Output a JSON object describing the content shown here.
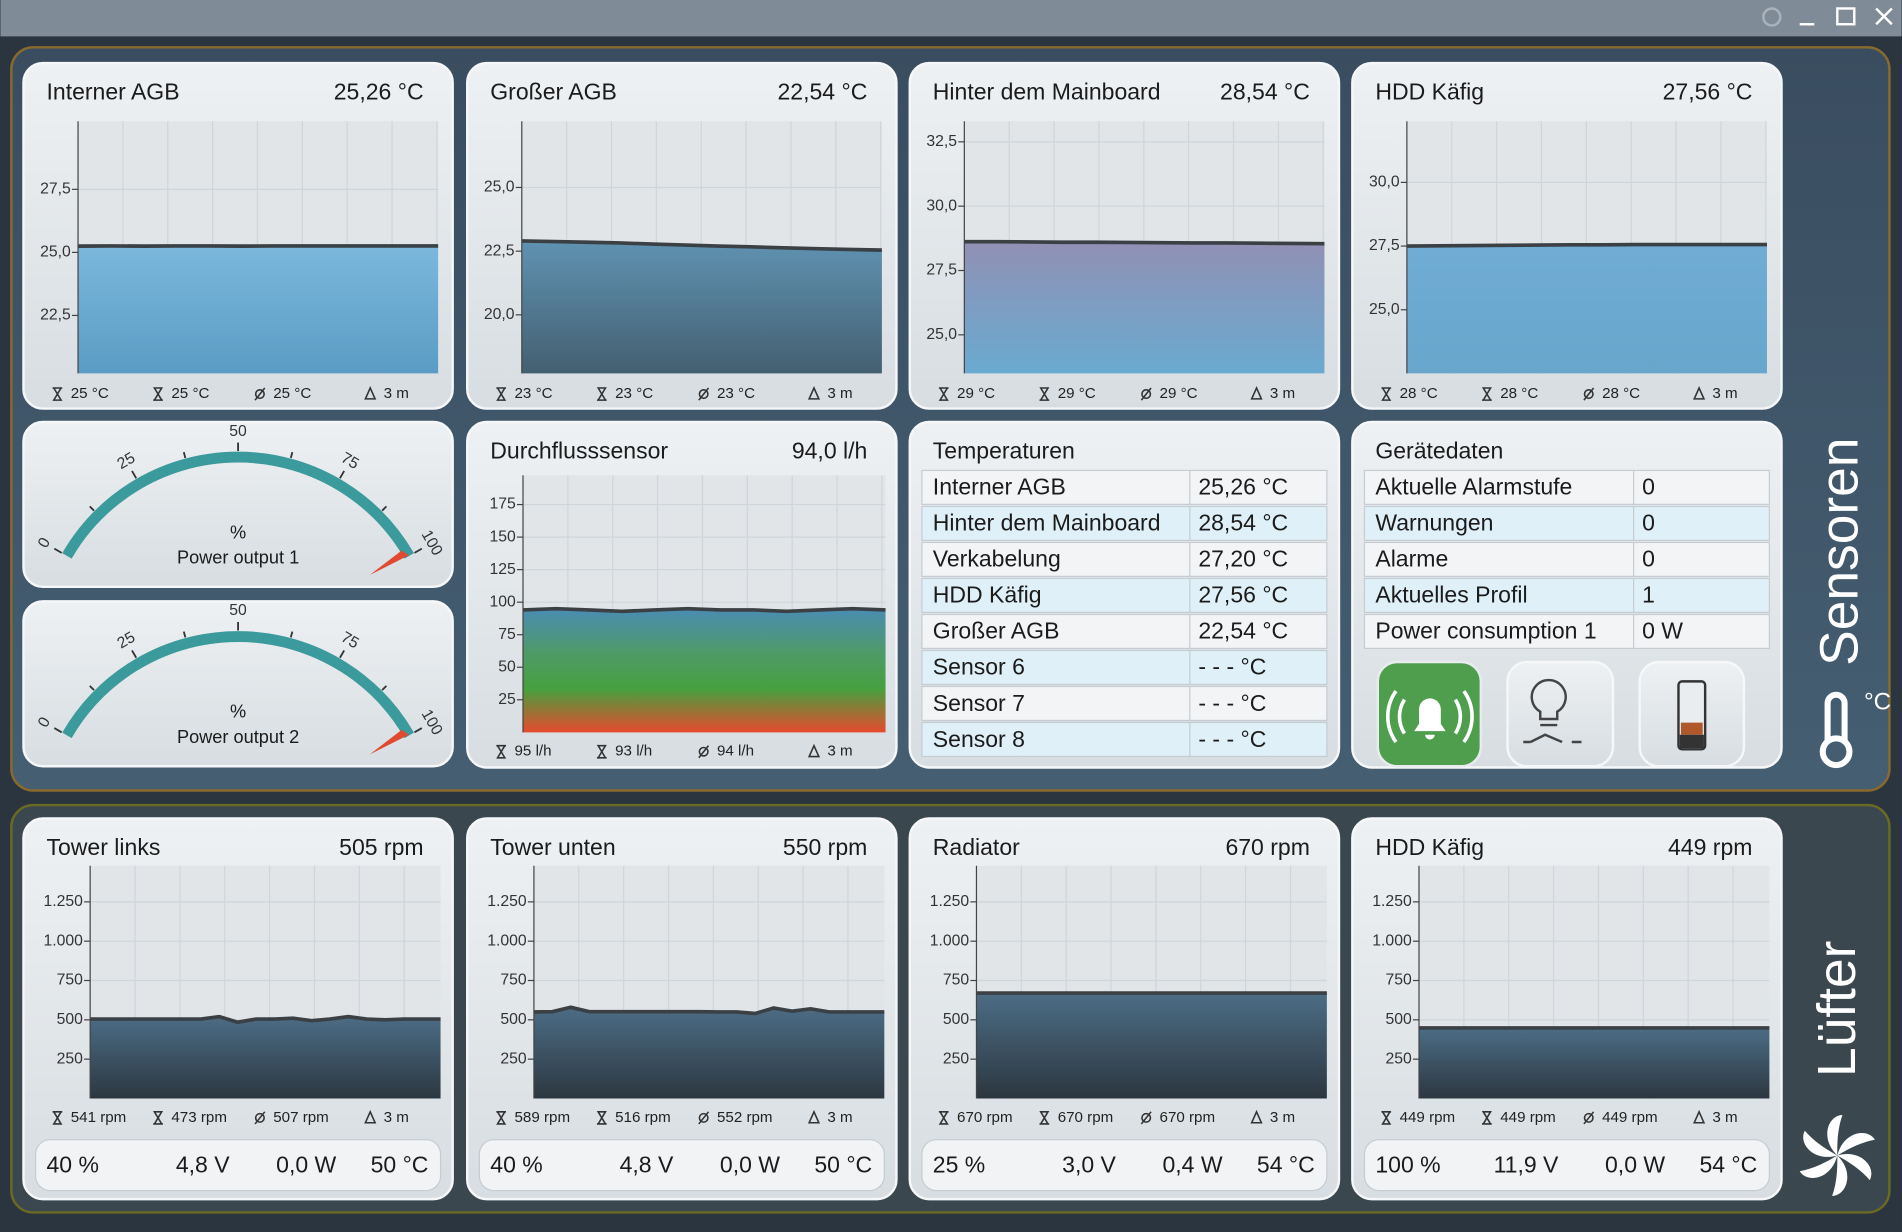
{
  "sensors": {
    "title": "Sensoren",
    "unit_icon": "°C",
    "charts": [
      {
        "title": "Interner AGB",
        "value": "25,26 °C",
        "ylim": [
          20.2,
          30.2
        ],
        "yticks": [
          {
            "value": 22.5,
            "label": "22,5"
          },
          {
            "value": 25,
            "label": "25,0"
          },
          {
            "value": 27.5,
            "label": "27,5"
          }
        ],
        "values": [
          25.25,
          25.26,
          25.25,
          25.26,
          25.26,
          25.25,
          25.26,
          25.26,
          25.26,
          25.26,
          25.26,
          25.26
        ],
        "stats": [
          "25 °C",
          "25 °C",
          "25 °C",
          "3 m"
        ]
      },
      {
        "title": "Großer AGB",
        "value": "22,54 °C",
        "ylim": [
          17.7,
          27.6
        ],
        "yticks": [
          {
            "value": 20,
            "label": "20,0"
          },
          {
            "value": 22.5,
            "label": "22,5"
          },
          {
            "value": 25,
            "label": "25,0"
          }
        ],
        "values": [
          22.9,
          22.88,
          22.85,
          22.82,
          22.78,
          22.74,
          22.7,
          22.67,
          22.63,
          22.6,
          22.57,
          22.54
        ],
        "stats": [
          "23 °C",
          "23 °C",
          "23 °C",
          "3 m"
        ]
      },
      {
        "title": "Hinter dem Mainboard",
        "value": "28,54 °C",
        "ylim": [
          23.5,
          33.3
        ],
        "yticks": [
          {
            "value": 25,
            "label": "25,0"
          },
          {
            "value": 27.5,
            "label": "27,5"
          },
          {
            "value": 30,
            "label": "30,0"
          },
          {
            "value": 32.5,
            "label": "32,5"
          }
        ],
        "values": [
          28.62,
          28.62,
          28.61,
          28.6,
          28.6,
          28.59,
          28.58,
          28.57,
          28.57,
          28.56,
          28.55,
          28.54
        ],
        "stats": [
          "29 °C",
          "29 °C",
          "29 °C",
          "3 m"
        ]
      },
      {
        "title": "HDD Käfig",
        "value": "27,56 °C",
        "ylim": [
          22.5,
          32.4
        ],
        "yticks": [
          {
            "value": 25,
            "label": "25,0"
          },
          {
            "value": 27.5,
            "label": "27,5"
          },
          {
            "value": 30,
            "label": "30,0"
          }
        ],
        "values": [
          27.5,
          27.51,
          27.52,
          27.53,
          27.54,
          27.55,
          27.55,
          27.56,
          27.56,
          27.56,
          27.56,
          27.56
        ],
        "stats": [
          "28 °C",
          "28 °C",
          "28 °C",
          "3 m"
        ]
      }
    ],
    "gauges": [
      {
        "range": [
          0,
          100
        ],
        "ticks": [
          0,
          25,
          50,
          75,
          100
        ],
        "unit": "%",
        "label": "Power output 1"
      },
      {
        "range": [
          0,
          100
        ],
        "ticks": [
          0,
          25,
          50,
          75,
          100
        ],
        "unit": "%",
        "label": "Power output 2"
      }
    ],
    "flow": {
      "title": "Durchflusssensor",
      "value": "94,0 l/h",
      "ylim": [
        0,
        197.5
      ],
      "yticks": [
        25,
        50,
        75,
        100,
        125,
        150,
        175
      ],
      "values": [
        94,
        95,
        94,
        93,
        94,
        95,
        94,
        94,
        93,
        94,
        95,
        94
      ],
      "stats": [
        "95 l/h",
        "93 l/h",
        "94 l/h",
        "3 m"
      ]
    },
    "temperatures": {
      "title": "Temperaturen",
      "rows": [
        [
          "Interner AGB",
          "25,26 °C"
        ],
        [
          "Hinter dem Mainboard",
          "28,54 °C"
        ],
        [
          "Verkabelung",
          "27,20 °C"
        ],
        [
          "HDD Käfig",
          "27,56 °C"
        ],
        [
          "Großer AGB",
          "22,54 °C"
        ],
        [
          "Sensor 6",
          "- - - °C"
        ],
        [
          "Sensor 7",
          "- - - °C"
        ],
        [
          "Sensor 8",
          "- - - °C"
        ]
      ]
    },
    "device_data": {
      "title": "Gerätedaten",
      "rows": [
        [
          "Aktuelle Alarmstufe",
          "0"
        ],
        [
          "Warnungen",
          "0"
        ],
        [
          "Alarme",
          "0"
        ],
        [
          "Aktuelles Profil",
          "1"
        ],
        [
          "Power consumption 1",
          "0 W"
        ]
      ]
    }
  },
  "fans": {
    "title": "Lüfter",
    "charts": [
      {
        "title": "Tower links",
        "value": "505 rpm",
        "ylim": [
          0,
          1480
        ],
        "yticks": [
          250,
          500,
          750,
          {
            "value": 1000,
            "label": "1.000"
          },
          {
            "value": 1250,
            "label": "1.250"
          }
        ],
        "values": [
          505,
          505,
          505,
          505,
          505,
          505,
          505,
          520,
          485,
          505,
          505,
          510,
          495,
          505,
          520,
          505,
          500,
          505,
          505,
          505
        ],
        "stats": [
          "541 rpm",
          "473 rpm",
          "507 rpm",
          "3 m"
        ],
        "footer": [
          "40 %",
          "4,8 V",
          "0,0 W",
          "50 °C"
        ]
      },
      {
        "title": "Tower unten",
        "value": "550 rpm",
        "ylim": [
          0,
          1480
        ],
        "yticks": [
          250,
          500,
          750,
          {
            "value": 1000,
            "label": "1.000"
          },
          {
            "value": 1250,
            "label": "1.250"
          }
        ],
        "values": [
          550,
          552,
          580,
          552,
          552,
          552,
          552,
          552,
          552,
          552,
          550,
          550,
          540,
          575,
          555,
          570,
          550,
          550,
          550,
          550
        ],
        "stats": [
          "589 rpm",
          "516 rpm",
          "552 rpm",
          "3 m"
        ],
        "footer": [
          "40 %",
          "4,8 V",
          "0,0 W",
          "50 °C"
        ]
      },
      {
        "title": "Radiator",
        "value": "670 rpm",
        "ylim": [
          0,
          1480
        ],
        "yticks": [
          250,
          500,
          750,
          {
            "value": 1000,
            "label": "1.000"
          },
          {
            "value": 1250,
            "label": "1.250"
          }
        ],
        "values": [
          670,
          670,
          670,
          670,
          670,
          670,
          670,
          670,
          670,
          670,
          670,
          670
        ],
        "stats": [
          "670 rpm",
          "670 rpm",
          "670 rpm",
          "3 m"
        ],
        "footer": [
          "25 %",
          "3,0 V",
          "0,4 W",
          "54 °C"
        ]
      },
      {
        "title": "HDD Käfig",
        "value": "449 rpm",
        "ylim": [
          0,
          1480
        ],
        "yticks": [
          250,
          500,
          750,
          {
            "value": 1000,
            "label": "1.000"
          },
          {
            "value": 1250,
            "label": "1.250"
          }
        ],
        "values": [
          449,
          449,
          449,
          449,
          449,
          449,
          449,
          449,
          449,
          449,
          449,
          449
        ],
        "stats": [
          "449 rpm",
          "449 rpm",
          "449 rpm",
          "3 m"
        ],
        "footer": [
          "100 %",
          "11,9 V",
          "0,0 W",
          "54 °C"
        ]
      }
    ]
  }
}
